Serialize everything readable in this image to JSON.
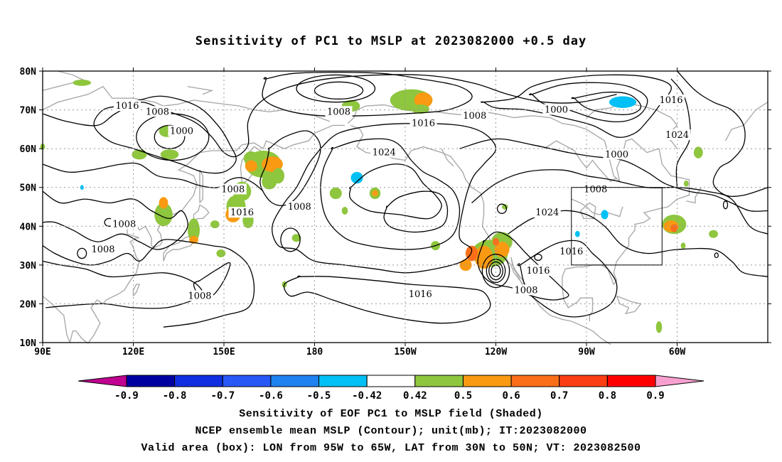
{
  "title": "Sensitivity of PC1 to MSLP at 2023082000 +0.5 day",
  "axes": {
    "lat_labels": [
      "80N",
      "70N",
      "60N",
      "50N",
      "40N",
      "30N",
      "20N",
      "10N"
    ],
    "lon_labels": [
      "90E",
      "120E",
      "150E",
      "180",
      "150W",
      "120W",
      "90W",
      "60W"
    ]
  },
  "contour_labels": [
    {
      "text": "1016",
      "lon": 118,
      "lat": 71
    },
    {
      "text": "1008",
      "lon": 128,
      "lat": 69.5
    },
    {
      "text": "1000",
      "lon": 136,
      "lat": 64.5
    },
    {
      "text": "1008",
      "lon": 188,
      "lat": 69.5
    },
    {
      "text": "1016",
      "lon": 216,
      "lat": 66.5
    },
    {
      "text": "1024",
      "lon": 203,
      "lat": 59
    },
    {
      "text": "1008",
      "lon": 233,
      "lat": 68.5
    },
    {
      "text": "1000",
      "lon": 260,
      "lat": 70
    },
    {
      "text": "1016",
      "lon": 298,
      "lat": 72.5
    },
    {
      "text": "1024",
      "lon": 300,
      "lat": 63.5
    },
    {
      "text": "1000",
      "lon": 280,
      "lat": 58.5
    },
    {
      "text": "1008",
      "lon": 273,
      "lat": 49.5
    },
    {
      "text": "1024",
      "lon": 257,
      "lat": 43.5
    },
    {
      "text": "1008",
      "lon": 153,
      "lat": 49.5
    },
    {
      "text": "1016",
      "lon": 156,
      "lat": 43.5
    },
    {
      "text": "1008",
      "lon": 175,
      "lat": 45
    },
    {
      "text": "1008",
      "lon": 117,
      "lat": 40.5
    },
    {
      "text": "1008",
      "lon": 110,
      "lat": 34
    },
    {
      "text": "1008",
      "lon": 142,
      "lat": 22
    },
    {
      "text": "1016",
      "lon": 215,
      "lat": 22.5
    },
    {
      "text": "1016",
      "lon": 254,
      "lat": 28.5
    },
    {
      "text": "1008",
      "lon": 250,
      "lat": 23.5
    },
    {
      "text": "1016",
      "lon": 265,
      "lat": 33.5
    }
  ],
  "colorbar": {
    "labels": [
      "-0.9",
      "-0.8",
      "-0.7",
      "-0.6",
      "-0.5",
      "-0.42",
      "0.42",
      "0.5",
      "0.6",
      "0.7",
      "0.8",
      "0.9"
    ],
    "colors": [
      "#0000a0",
      "#0f2fe0",
      "#2858f5",
      "#1e82f0",
      "#00c0f5",
      "#ffffff",
      "#8ec63e",
      "#f99a12",
      "#fa6e1a",
      "#fb3e14",
      "#ff0000"
    ],
    "low_color": "#c00090",
    "high_color": "#f7a0d0"
  },
  "shading_colors": {
    "pos_light": "#8ec63e",
    "pos_mid": "#f99a12",
    "pos_high": "#fa6e1a",
    "neg_cyan": "#00c0f5"
  },
  "captions": {
    "line1": "Sensitivity of EOF PC1 to MSLP field (Shaded)",
    "line2": "NCEP ensemble mean MSLP (Contour); unit(mb); IT:2023082000",
    "line3": "Valid area (box): LON from 95W to 65W, LAT from 30N to 50N; VT: 2023082500"
  }
}
